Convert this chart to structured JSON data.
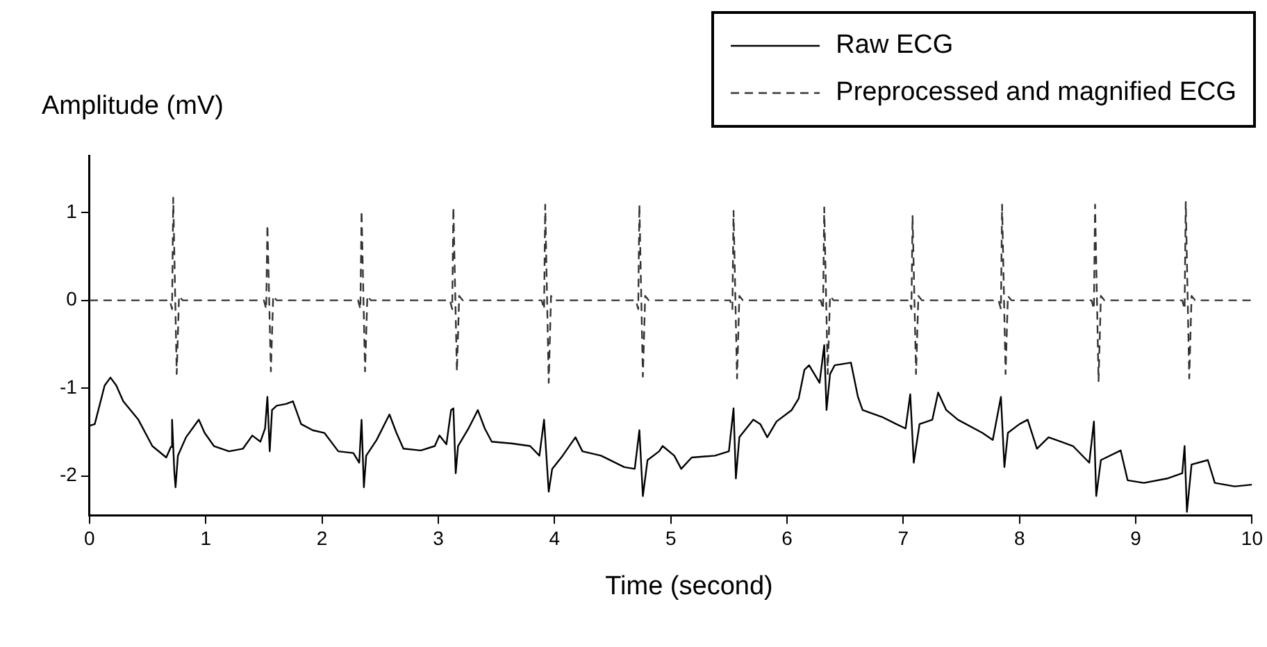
{
  "chart_data": {
    "type": "line",
    "xlabel": "Time (second)",
    "ylabel": "Amplitude (mV)",
    "xlim": [
      0,
      10
    ],
    "xticks": [
      0,
      1,
      2,
      3,
      4,
      5,
      6,
      7,
      8,
      9,
      10
    ],
    "ylim": [
      -2.45,
      1.65
    ],
    "yticks": [
      -2,
      -1,
      0,
      1
    ],
    "grid": false,
    "legend": "top right",
    "marker": "none",
    "series": [
      {
        "name": "Raw ECG",
        "color": "#000000",
        "line_style": "solid",
        "x": [
          0,
          0.045,
          0.13,
          0.18,
          0.23,
          0.29,
          0.42,
          0.54,
          0.66,
          0.7,
          0.71,
          0.73,
          0.74,
          0.76,
          0.83,
          0.94,
          0.99,
          1.07,
          1.2,
          1.32,
          1.4,
          1.47,
          1.51,
          1.53,
          1.55,
          1.57,
          1.61,
          1.69,
          1.75,
          1.82,
          1.92,
          2.02,
          2.14,
          2.27,
          2.32,
          2.34,
          2.36,
          2.38,
          2.47,
          2.58,
          2.64,
          2.7,
          2.85,
          2.97,
          3.01,
          3.07,
          3.11,
          3.13,
          3.15,
          3.17,
          3.26,
          3.34,
          3.4,
          3.46,
          3.63,
          3.79,
          3.87,
          3.91,
          3.95,
          3.98,
          4.07,
          4.18,
          4.24,
          4.4,
          4.6,
          4.69,
          4.73,
          4.76,
          4.8,
          4.9,
          4.93,
          5.03,
          5.09,
          5.18,
          5.38,
          5.5,
          5.54,
          5.56,
          5.59,
          5.71,
          5.77,
          5.83,
          5.91,
          6.04,
          6.1,
          6.15,
          6.19,
          6.28,
          6.32,
          6.34,
          6.37,
          6.41,
          6.55,
          6.61,
          6.65,
          6.82,
          6.94,
          7.02,
          7.06,
          7.09,
          7.14,
          7.25,
          7.3,
          7.37,
          7.47,
          7.68,
          7.77,
          7.84,
          7.87,
          7.9,
          8,
          8.07,
          8.15,
          8.25,
          8.46,
          8.6,
          8.64,
          8.66,
          8.7,
          8.87,
          8.93,
          9.07,
          9.27,
          9.4,
          9.42,
          9.44,
          9.48,
          9.62,
          9.68,
          9.85,
          10
        ],
        "values": [
          -1.43,
          -1.41,
          -0.97,
          -0.88,
          -0.97,
          -1.15,
          -1.36,
          -1.66,
          -1.79,
          -1.67,
          -1.36,
          -1.97,
          -2.13,
          -1.77,
          -1.56,
          -1.36,
          -1.51,
          -1.66,
          -1.72,
          -1.69,
          -1.54,
          -1.61,
          -1.46,
          -1.1,
          -1.72,
          -1.25,
          -1.2,
          -1.18,
          -1.15,
          -1.41,
          -1.48,
          -1.51,
          -1.72,
          -1.74,
          -1.85,
          -1.36,
          -2.13,
          -1.77,
          -1.59,
          -1.3,
          -1.51,
          -1.69,
          -1.71,
          -1.66,
          -1.54,
          -1.64,
          -1.25,
          -1.23,
          -1.97,
          -1.66,
          -1.46,
          -1.25,
          -1.46,
          -1.61,
          -1.63,
          -1.66,
          -1.77,
          -1.36,
          -2.18,
          -1.92,
          -1.77,
          -1.56,
          -1.72,
          -1.77,
          -1.9,
          -1.92,
          -1.48,
          -2.23,
          -1.82,
          -1.72,
          -1.66,
          -1.77,
          -1.92,
          -1.79,
          -1.77,
          -1.72,
          -1.23,
          -2.03,
          -1.56,
          -1.36,
          -1.41,
          -1.56,
          -1.38,
          -1.25,
          -1.12,
          -0.79,
          -0.74,
          -0.94,
          -0.51,
          -1.25,
          -0.84,
          -0.74,
          -0.71,
          -1.1,
          -1.25,
          -1.33,
          -1.41,
          -1.46,
          -1.07,
          -1.85,
          -1.41,
          -1.36,
          -1.05,
          -1.25,
          -1.36,
          -1.51,
          -1.59,
          -1.1,
          -1.9,
          -1.51,
          -1.41,
          -1.36,
          -1.69,
          -1.56,
          -1.66,
          -1.85,
          -1.38,
          -2.23,
          -1.82,
          -1.71,
          -2.05,
          -2.08,
          -2.03,
          -1.97,
          -1.66,
          -2.41,
          -1.87,
          -1.82,
          -2.08,
          -2.12,
          -2.1
        ]
      },
      {
        "name": "Preprocessed and magnified ECG",
        "color": "#333333",
        "line_style": "dashed",
        "x": [
          0,
          0.69,
          0.71,
          0.72,
          0.75,
          0.77,
          0.8,
          1.5,
          1.52,
          1.53,
          1.56,
          1.58,
          1.61,
          2.31,
          2.33,
          2.34,
          2.37,
          2.39,
          2.42,
          3.1,
          3.12,
          3.13,
          3.16,
          3.18,
          3.21,
          3.89,
          3.91,
          3.92,
          3.95,
          3.97,
          4,
          4.7,
          4.72,
          4.73,
          4.76,
          4.78,
          4.81,
          5.51,
          5.53,
          5.54,
          5.57,
          5.59,
          5.62,
          6.29,
          6.31,
          6.32,
          6.35,
          6.37,
          6.4,
          7.05,
          7.07,
          7.08,
          7.11,
          7.13,
          7.16,
          7.82,
          7.84,
          7.85,
          7.88,
          7.9,
          7.93,
          8.62,
          8.64,
          8.65,
          8.68,
          8.7,
          8.73,
          9.4,
          9.42,
          9.43,
          9.46,
          9.48,
          9.51,
          10
        ],
        "values": [
          0,
          0,
          -0.1,
          1.17,
          -0.84,
          0.05,
          0,
          0,
          -0.1,
          0.86,
          -0.81,
          0.05,
          0,
          0,
          -0.1,
          1.02,
          -0.81,
          0.05,
          0,
          0,
          -0.1,
          1.06,
          -0.81,
          0.05,
          0,
          0,
          -0.1,
          1.09,
          -0.94,
          0.05,
          0,
          0,
          -0.1,
          1.09,
          -0.87,
          0.05,
          0,
          0,
          -0.1,
          1.02,
          -0.89,
          0.05,
          0,
          0,
          -0.1,
          1.06,
          -0.84,
          0.05,
          0,
          0,
          -0.1,
          0.96,
          -0.84,
          0.05,
          0,
          0,
          -0.1,
          1.09,
          -0.84,
          0.05,
          0,
          0,
          -0.1,
          1.09,
          -0.92,
          0.05,
          0,
          0,
          -0.1,
          1.12,
          -0.89,
          0.05,
          0,
          0
        ]
      }
    ]
  }
}
